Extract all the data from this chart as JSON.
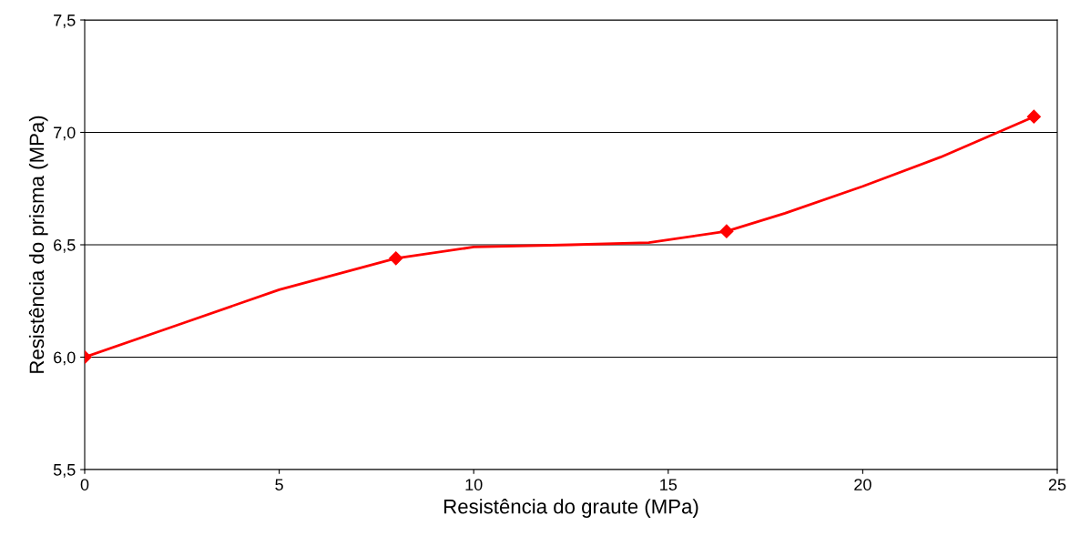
{
  "chart_data": {
    "type": "line",
    "xlabel": "Resistência do graute (MPa)",
    "ylabel": "Resistência do prisma (MPa)",
    "series": [
      {
        "marker": "none",
        "color": "#ff0000",
        "x": [
          0,
          2.5,
          5,
          8.0,
          10,
          12.5,
          14.5,
          16.5,
          18,
          20,
          22,
          24.4
        ],
        "values": [
          6.0,
          6.15,
          6.3,
          6.44,
          6.49,
          6.5,
          6.51,
          6.56,
          6.64,
          6.76,
          6.89,
          7.07
        ]
      },
      {
        "type": "scatter",
        "marker": "diamond",
        "color": "#ff0000",
        "x": [
          0,
          8.0,
          16.5,
          24.4
        ],
        "values": [
          6.0,
          6.44,
          6.56,
          7.07
        ]
      }
    ],
    "line_style": "solid",
    "grid": "y",
    "xlim": [
      0,
      25
    ],
    "xticks": [
      0,
      5,
      10,
      15,
      20,
      25
    ],
    "ylim": [
      5.5,
      7.5
    ],
    "yticks": [
      {
        "value": 5.5,
        "label": "5,5"
      },
      {
        "value": 6.0,
        "label": "6,0"
      },
      {
        "value": 6.5,
        "label": "6,5"
      },
      {
        "value": 7.0,
        "label": "7,0"
      },
      {
        "value": 7.5,
        "label": "7,5"
      }
    ]
  }
}
